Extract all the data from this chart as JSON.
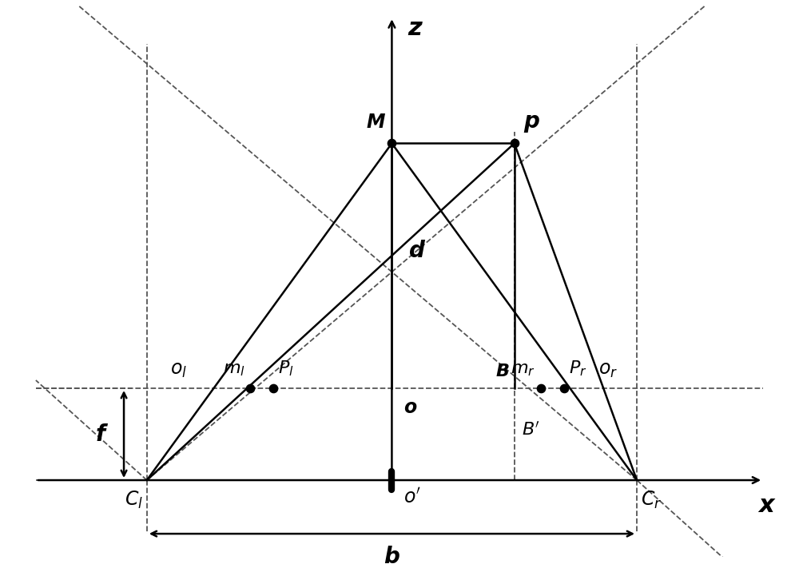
{
  "fig_width": 10.0,
  "fig_height": 7.21,
  "bg_color": "#ffffff",
  "line_color": "#000000",
  "dashed_color": "#555555",
  "o_x": 0.0,
  "Cl_x": -3.2,
  "Cr_x": 3.2,
  "baseline_y": -1.2,
  "image_plane_y": 0.0,
  "ol_x": -2.6,
  "or_x": 2.6,
  "ml_x": -1.85,
  "Pl_x": -1.55,
  "mr_x": 1.95,
  "Pr_x": 2.25,
  "B_x": 1.6,
  "M_x": 0.0,
  "M_y": 3.2,
  "p_x": 1.6,
  "p_y": 3.2,
  "xlim": [
    -4.8,
    5.0
  ],
  "ylim": [
    -2.2,
    5.0
  ],
  "font_size_label": 17,
  "font_size_axis": 20,
  "lw_main": 1.8,
  "lw_dash": 1.3,
  "dot_size": 55
}
